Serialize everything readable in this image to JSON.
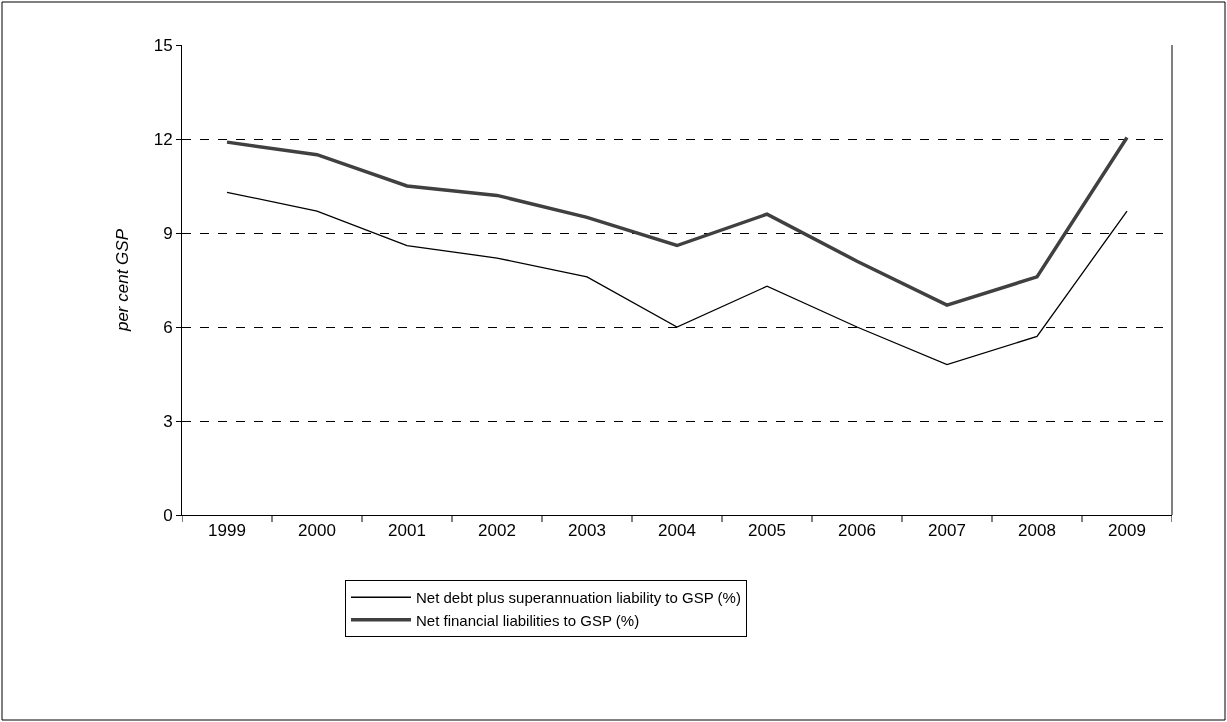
{
  "chart_data": {
    "type": "line",
    "ylabel": "per cent GSP",
    "categories": [
      "1999",
      "2000",
      "2001",
      "2002",
      "2003",
      "2004",
      "2005",
      "2006",
      "2007",
      "2008",
      "2009"
    ],
    "series": [
      {
        "name": "Net debt plus superannuation liability to GSP (%)",
        "color": "#000000",
        "values": [
          10.3,
          9.7,
          8.6,
          8.2,
          7.6,
          6.0,
          7.3,
          6.0,
          4.8,
          5.7,
          9.7
        ]
      },
      {
        "name": "Net financial liabilities to GSP (%)",
        "color": "#404040",
        "values": [
          11.9,
          11.5,
          10.5,
          10.2,
          9.5,
          8.6,
          9.6,
          8.1,
          6.7,
          7.6,
          12.05
        ]
      }
    ],
    "ylim": [
      0,
      15
    ],
    "yticks": [
      0,
      3,
      6,
      9,
      12,
      15
    ],
    "grid": "y",
    "legend": "bottom",
    "marker": "none",
    "line_style": "solid"
  }
}
